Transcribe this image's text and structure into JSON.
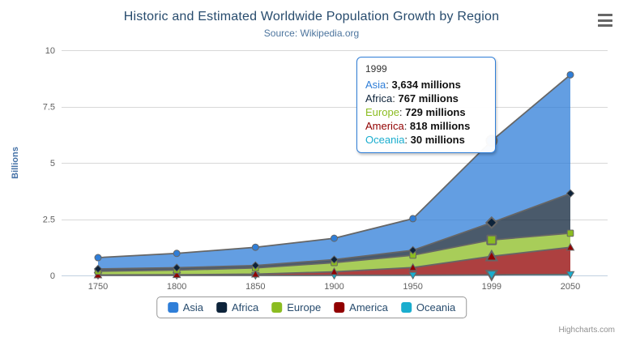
{
  "chart_data": {
    "type": "area",
    "stacking": "normal",
    "title": "Historic and Estimated Worldwide Population Growth by Region",
    "subtitle": "Source: Wikipedia.org",
    "categories": [
      "1750",
      "1800",
      "1850",
      "1900",
      "1950",
      "1999",
      "2050"
    ],
    "xlabel": "",
    "ylabel": "Billions",
    "ylim": [
      0,
      10
    ],
    "yticks": [
      0,
      2.5,
      5,
      7.5,
      10
    ],
    "value_unit": "millions",
    "grid": true,
    "legend_position": "bottom",
    "hover_index": 5,
    "series": [
      {
        "name": "Asia",
        "color": "#2f7ed8",
        "marker": "circle",
        "values": [
          502,
          635,
          809,
          947,
          1402,
          3634,
          5268
        ]
      },
      {
        "name": "Africa",
        "color": "#0d233a",
        "marker": "diamond",
        "values": [
          106,
          107,
          111,
          133,
          221,
          767,
          1766
        ]
      },
      {
        "name": "Europe",
        "color": "#8bbc21",
        "marker": "square",
        "values": [
          163,
          203,
          276,
          408,
          547,
          729,
          628
        ]
      },
      {
        "name": "America",
        "color": "#910000",
        "marker": "triangle",
        "values": [
          18,
          31,
          54,
          156,
          339,
          818,
          1201
        ]
      },
      {
        "name": "Oceania",
        "color": "#1aadce",
        "marker": "triangle-down",
        "values": [
          2,
          2,
          2,
          6,
          13,
          30,
          46
        ]
      }
    ]
  },
  "tooltip": {
    "header": "1999",
    "rows": [
      {
        "name": "Asia",
        "value": "3,634 millions"
      },
      {
        "name": "Africa",
        "value": "767 millions"
      },
      {
        "name": "Europe",
        "value": "729 millions"
      },
      {
        "name": "America",
        "value": "818 millions"
      },
      {
        "name": "Oceania",
        "value": "30 millions"
      }
    ]
  },
  "credits": "Highcharts.com",
  "icons": {
    "context_menu": "hamburger-icon"
  },
  "colors": {
    "title": "#274b6d",
    "subtitle": "#4d759e",
    "axis_labels": "#606060",
    "y_axis_title": "#4572A7",
    "gridline": "#D8D8D8",
    "x_axis_line": "#C0D0E0",
    "series_line": "#666666",
    "legend_text": "#274b6d",
    "tooltip_border": "#2f7ed8"
  }
}
